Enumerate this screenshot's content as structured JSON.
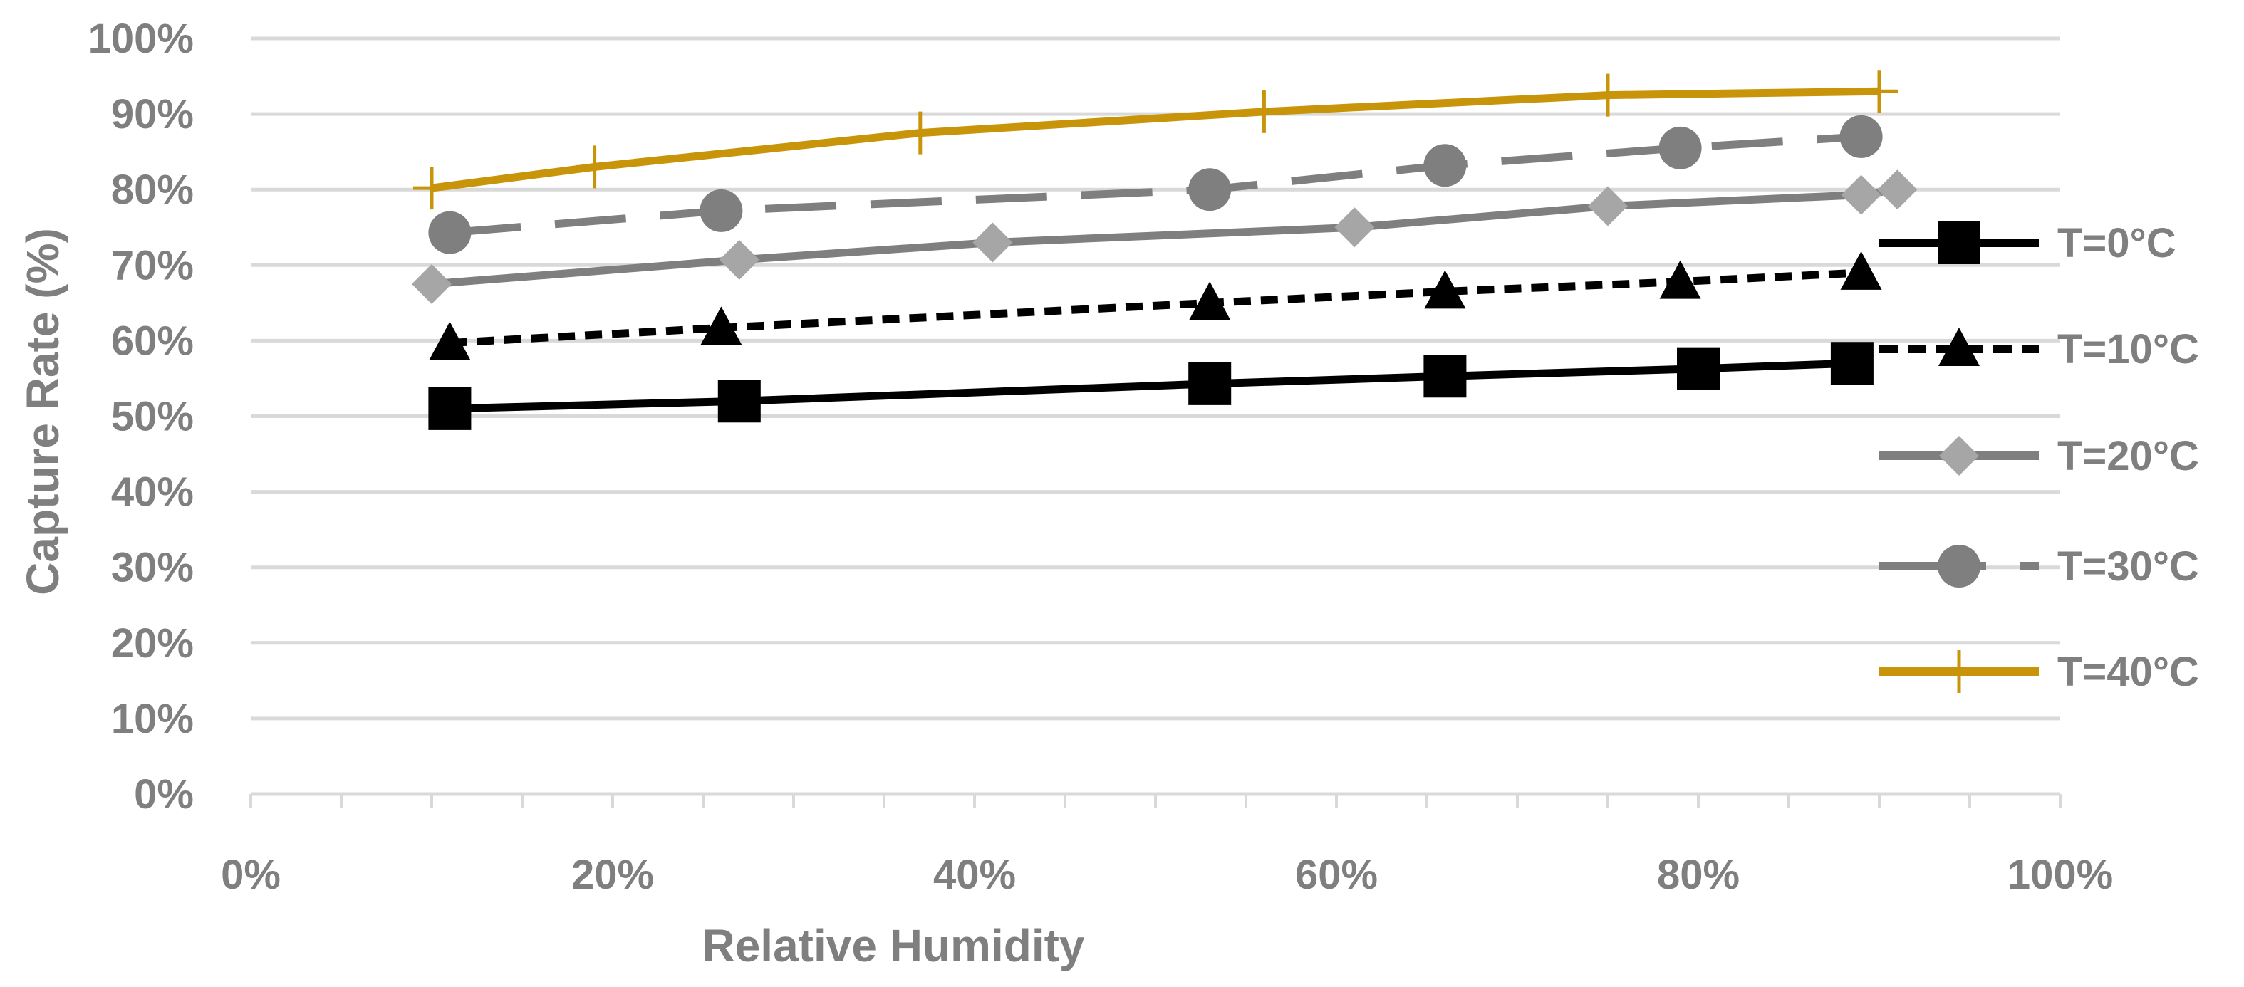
{
  "chart_data": {
    "type": "line",
    "title": "",
    "xlabel": "Relative Humidity",
    "ylabel": "Capture Rate (%)",
    "xlim": [
      0,
      100
    ],
    "ylim": [
      0,
      100
    ],
    "x_ticks": [
      "0%",
      "20%",
      "40%",
      "60%",
      "80%",
      "100%"
    ],
    "y_ticks": [
      "0%",
      "10%",
      "20%",
      "30%",
      "40%",
      "50%",
      "60%",
      "70%",
      "80%",
      "90%",
      "100%"
    ],
    "grid": "horizontal",
    "legend": "right",
    "series": [
      {
        "name": "T=0°C",
        "color": "#000000",
        "marker": "square",
        "dash": "solid",
        "points": [
          [
            11,
            51
          ],
          [
            27,
            52
          ],
          [
            53,
            54.3
          ],
          [
            66,
            55.3
          ],
          [
            80,
            56.3
          ],
          [
            88.5,
            57
          ]
        ]
      },
      {
        "name": "T=10°C",
        "color": "#000000",
        "marker": "triangle",
        "dash": "dotted",
        "points": [
          [
            11,
            59.7
          ],
          [
            26,
            61.7
          ],
          [
            53,
            65
          ],
          [
            66,
            66.5
          ],
          [
            79,
            67.8
          ],
          [
            89,
            69
          ]
        ]
      },
      {
        "name": "T=20°C",
        "color": "#a6a6a6",
        "line_color": "#7f7f7f",
        "marker": "diamond",
        "dash": "solid",
        "points": [
          [
            10,
            67.5
          ],
          [
            27,
            70.7
          ],
          [
            41,
            73
          ],
          [
            61,
            75
          ],
          [
            75,
            77.8
          ],
          [
            89,
            79.3
          ],
          [
            91,
            80
          ]
        ]
      },
      {
        "name": "T=30°C",
        "color": "#7f7f7f",
        "marker": "circle",
        "dash": "dashed",
        "points": [
          [
            11,
            74.3
          ],
          [
            26,
            77.2
          ],
          [
            53,
            80
          ],
          [
            66,
            83.2
          ],
          [
            79,
            85.5
          ],
          [
            89,
            87
          ]
        ]
      },
      {
        "name": "T=40°C",
        "color": "#c8940a",
        "marker": "plus",
        "dash": "solid",
        "points": [
          [
            10,
            80.2
          ],
          [
            19,
            83
          ],
          [
            37,
            87.5
          ],
          [
            56,
            90.3
          ],
          [
            75,
            92.5
          ],
          [
            90,
            93
          ]
        ]
      }
    ]
  }
}
